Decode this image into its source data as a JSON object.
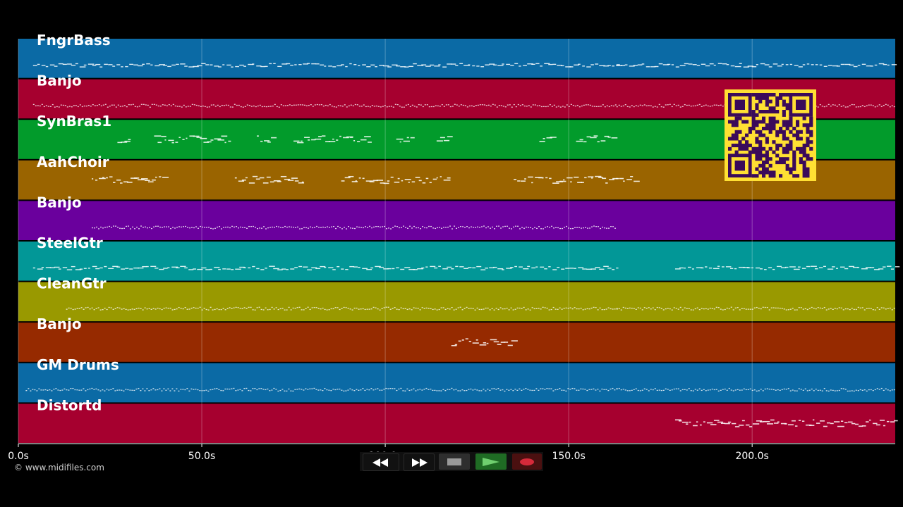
{
  "colors": {
    "background": "#000000",
    "grid": "#ffffff",
    "note": "#ffffff"
  },
  "timeline": {
    "max_seconds": 239,
    "ticks": [
      {
        "value": 0,
        "label": "0.0s"
      },
      {
        "value": 50,
        "label": "50.0s"
      },
      {
        "value": 100,
        "label": "100.0s"
      },
      {
        "value": 150,
        "label": "150.0s"
      },
      {
        "value": 200,
        "label": "200.0s"
      }
    ]
  },
  "tracks": [
    {
      "name": "FngrBass",
      "color": "#0b6aa5",
      "style": "line",
      "segments": [
        [
          4,
          21
        ],
        [
          21,
          163
        ],
        [
          163,
          239
        ]
      ]
    },
    {
      "name": "Banjo",
      "color": "#a6002f",
      "style": "dense",
      "segments": [
        [
          4,
          163
        ],
        [
          163,
          239
        ]
      ]
    },
    {
      "name": "SynBras1",
      "color": "#029b2b",
      "style": "phrase",
      "segments": [
        [
          27,
          30
        ],
        [
          37,
          58
        ],
        [
          65,
          69
        ],
        [
          75,
          96
        ],
        [
          103,
          107
        ],
        [
          114,
          117
        ],
        [
          142,
          145
        ],
        [
          152,
          162
        ]
      ]
    },
    {
      "name": "AahChoir",
      "color": "#9a6400",
      "style": "phrase",
      "segments": [
        [
          20,
          40
        ],
        [
          59,
          78
        ],
        [
          88,
          117
        ],
        [
          135,
          168
        ]
      ]
    },
    {
      "name": "Banjo",
      "color": "#6a009d",
      "style": "dense",
      "segments": [
        [
          20,
          163
        ]
      ]
    },
    {
      "name": "SteelGtr",
      "color": "#029797",
      "style": "line",
      "segments": [
        [
          4,
          21
        ],
        [
          21,
          163
        ],
        [
          179,
          239
        ]
      ]
    },
    {
      "name": "CleanGtr",
      "color": "#999900",
      "style": "dense",
      "segments": [
        [
          13,
          163
        ],
        [
          163,
          239
        ]
      ]
    },
    {
      "name": "Banjo",
      "color": "#962a00",
      "style": "phrase",
      "segments": [
        [
          118,
          135
        ]
      ]
    },
    {
      "name": "GM Drums",
      "color": "#0b6aa5",
      "style": "dense",
      "segments": [
        [
          2,
          163
        ],
        [
          163,
          239
        ]
      ]
    },
    {
      "name": "Distortd",
      "color": "#a6002f",
      "style": "phrase",
      "segments": [
        [
          179,
          239
        ]
      ]
    }
  ],
  "footer": {
    "copyright": "© www.midifiles.com"
  },
  "transport": {
    "rewind_icon": "rewind-icon",
    "fast_forward_icon": "fast-forward-icon",
    "stop_icon": "stop-icon",
    "play_icon": "play-icon",
    "record_icon": "record-icon"
  },
  "qr_code": {
    "color": "#ffe033",
    "dark": "#3a0a5a"
  }
}
